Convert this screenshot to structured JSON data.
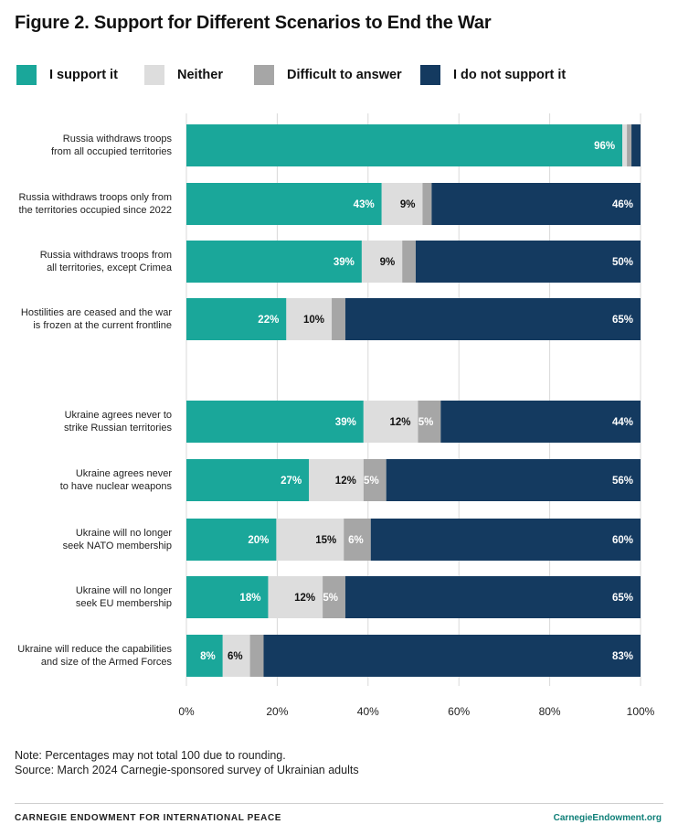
{
  "title": "Figure 2. Support for Different Scenarios to End the War",
  "colors": {
    "support": "#1aa79a",
    "neither": "#dddddd",
    "difficult": "#a6a6a6",
    "not_support": "#143a60",
    "grid": "#d9d9d9"
  },
  "legend": [
    {
      "label": "I support it",
      "color": "#1aa79a"
    },
    {
      "label": "Neither",
      "color": "#dddddd"
    },
    {
      "label": "Difficult to answer",
      "color": "#a6a6a6"
    },
    {
      "label": "I do not support it",
      "color": "#143a60"
    }
  ],
  "chart_data": {
    "type": "bar",
    "orientation": "horizontal",
    "stacked": true,
    "xlim": [
      0,
      100
    ],
    "xticks": [
      "0%",
      "20%",
      "40%",
      "60%",
      "80%",
      "100%"
    ],
    "grid": true,
    "legend_position": "top",
    "categories": [
      [
        "Russia withdraws troops",
        "from all occupied territories"
      ],
      [
        "Russia withdraws troops only from",
        "the territories occupied since 2022"
      ],
      [
        "Russia withdraws troops from",
        "all territories, except Crimea"
      ],
      [
        "Hostilities are ceased and the war",
        "is frozen at the current frontline"
      ],
      [
        "Ukraine agrees never to",
        "strike Russian territories"
      ],
      [
        "Ukraine agrees never",
        "to have nuclear weapons"
      ],
      [
        "Ukraine will no longer",
        "seek NATO membership"
      ],
      [
        "Ukraine will no longer",
        "seek EU membership"
      ],
      [
        "Ukraine will reduce the capabilities",
        "and size of the Armed Forces"
      ]
    ],
    "series": [
      {
        "name": "I support it",
        "values": [
          96,
          43,
          39,
          22,
          39,
          27,
          20,
          18,
          8
        ],
        "labels": [
          "96%",
          "43%",
          "39%",
          "22%",
          "39%",
          "27%",
          "20%",
          "18%",
          "8%"
        ]
      },
      {
        "name": "Neither",
        "values": [
          1,
          9,
          9,
          10,
          12,
          12,
          15,
          12,
          6
        ],
        "labels": [
          "",
          "9%",
          "9%",
          "10%",
          "12%",
          "12%",
          "15%",
          "12%",
          "6%"
        ]
      },
      {
        "name": "Difficult to answer",
        "values": [
          1,
          2,
          3,
          3,
          5,
          5,
          6,
          5,
          3
        ],
        "labels": [
          "",
          "",
          "",
          "",
          "5%",
          "5%",
          "6%",
          "5%",
          ""
        ]
      },
      {
        "name": "I do not support it",
        "values": [
          2,
          46,
          50,
          65,
          44,
          56,
          60,
          65,
          83
        ],
        "labels": [
          "",
          "46%",
          "50%",
          "65%",
          "44%",
          "56%",
          "60%",
          "65%",
          "83%"
        ]
      }
    ]
  },
  "note": "Note: Percentages may not total 100 due to rounding.",
  "source": "Source: March 2024 Carnegie-sponsored survey of Ukrainian adults",
  "footer": {
    "left": "CARNEGIE ENDOWMENT FOR INTERNATIONAL PEACE",
    "right": "CarnegieEndowment.org"
  }
}
